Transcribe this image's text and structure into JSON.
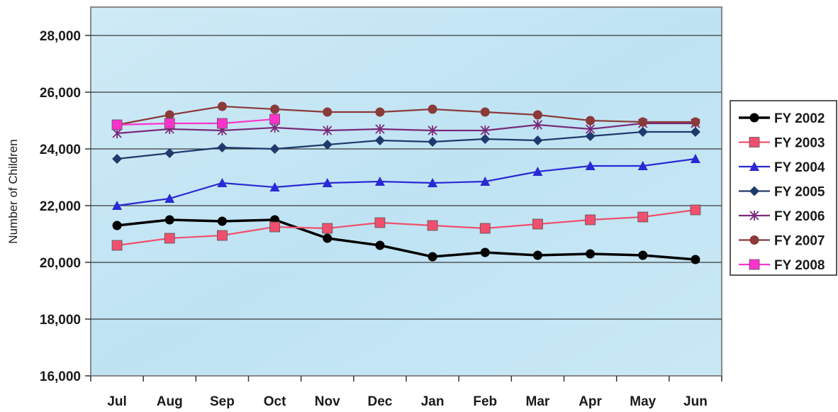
{
  "chart_data": {
    "type": "line",
    "title": "",
    "xlabel": "",
    "ylabel": "Number of Children",
    "ylim": [
      16000,
      29000
    ],
    "yticks": [
      16000,
      18000,
      20000,
      22000,
      24000,
      26000,
      28000
    ],
    "ytick_labels": [
      "16,000",
      "18,000",
      "20,000",
      "22,000",
      "24,000",
      "26,000",
      "28,000"
    ],
    "categories": [
      "Jul",
      "Aug",
      "Sep",
      "Oct",
      "Nov",
      "Dec",
      "Jan",
      "Feb",
      "Mar",
      "Apr",
      "May",
      "Jun"
    ],
    "grid": true,
    "legend_position": "right",
    "series": [
      {
        "name": "FY 2002",
        "color": "#000000",
        "marker": "circle",
        "values": [
          21300,
          21500,
          21450,
          21500,
          20850,
          20600,
          20200,
          20350,
          20250,
          20300,
          20250,
          20100
        ]
      },
      {
        "name": "FY 2003",
        "color": "#f0506e",
        "marker": "square",
        "values": [
          20600,
          20850,
          20950,
          21250,
          21200,
          21400,
          21300,
          21200,
          21350,
          21500,
          21600,
          21850
        ]
      },
      {
        "name": "FY 2004",
        "color": "#2a2ad4",
        "marker": "triangle",
        "values": [
          22000,
          22250,
          22800,
          22650,
          22800,
          22850,
          22800,
          22850,
          23200,
          23400,
          23400,
          23650
        ]
      },
      {
        "name": "FY 2005",
        "color": "#1f3a6b",
        "marker": "diamond",
        "values": [
          23650,
          23850,
          24050,
          24000,
          24150,
          24300,
          24250,
          24350,
          24300,
          24450,
          24600,
          24600
        ]
      },
      {
        "name": "FY 2006",
        "color": "#7a2a7a",
        "marker": "star",
        "values": [
          24550,
          24700,
          24650,
          24750,
          24650,
          24700,
          24650,
          24650,
          24850,
          24700,
          24900,
          24900
        ]
      },
      {
        "name": "FY 2007",
        "color": "#8b3a3a",
        "marker": "circle",
        "values": [
          24850,
          25200,
          25500,
          25400,
          25300,
          25300,
          25400,
          25300,
          25200,
          25000,
          24950,
          24950
        ]
      },
      {
        "name": "FY 2008",
        "color": "#ff33cc",
        "marker": "square",
        "values": [
          24850,
          24900,
          24900,
          25050,
          null,
          null,
          null,
          null,
          null,
          null,
          null,
          null
        ]
      }
    ]
  }
}
